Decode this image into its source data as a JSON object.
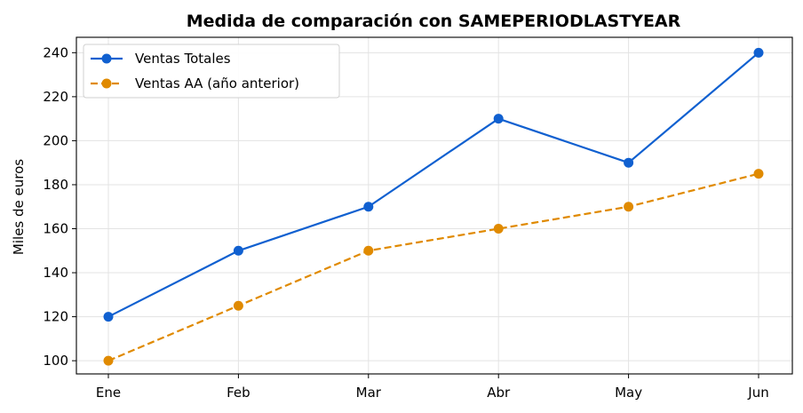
{
  "chart_data": {
    "type": "line",
    "title": "Medida de comparación con SAMEPERIODLASTYEAR",
    "xlabel": "",
    "ylabel": "Miles de euros",
    "categories": [
      "Ene",
      "Feb",
      "Mar",
      "Abr",
      "May",
      "Jun"
    ],
    "ylim": [
      94,
      247
    ],
    "yticks": [
      100,
      120,
      140,
      160,
      180,
      200,
      220,
      240
    ],
    "grid": true,
    "legend_position": "top-left",
    "series": [
      {
        "name": "Ventas Totales",
        "values": [
          120,
          150,
          170,
          210,
          190,
          240
        ],
        "color": "#1060d0",
        "dash": "solid"
      },
      {
        "name": "Ventas AA (año anterior)",
        "values": [
          100,
          125,
          150,
          160,
          170,
          185
        ],
        "color": "#e08a00",
        "dash": "dashed"
      }
    ]
  }
}
